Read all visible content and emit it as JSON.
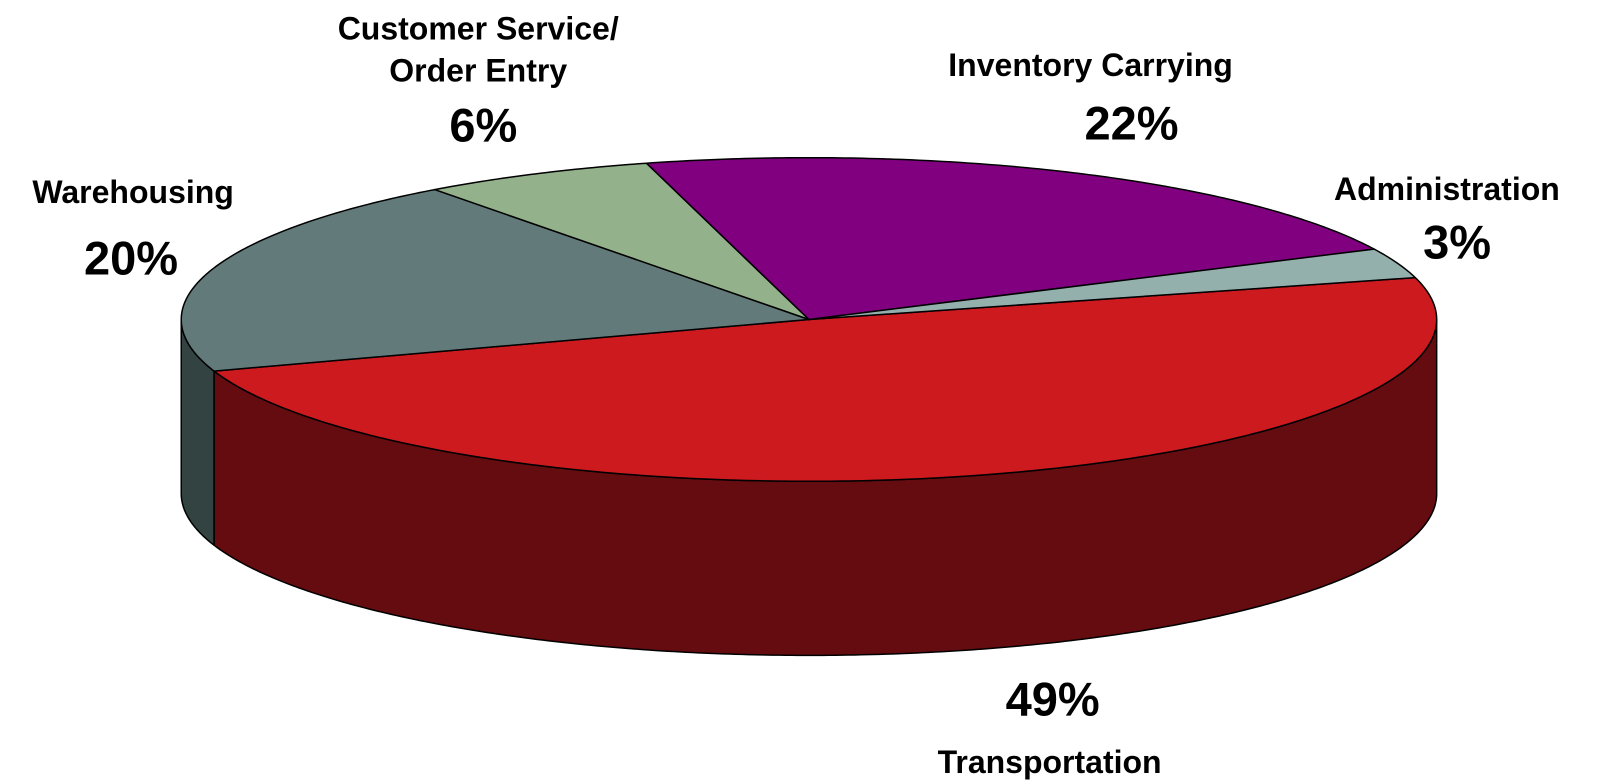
{
  "chart_data": {
    "type": "pie3d",
    "categories": [
      "Transportation",
      "Warehousing",
      "Customer Service/\nOrder Entry",
      "Inventory Carrying",
      "Administration"
    ],
    "values": [
      49,
      20,
      6,
      22,
      3
    ],
    "value_labels": [
      "49%",
      "20%",
      "6%",
      "22%",
      "3%"
    ],
    "colors": [
      "#cc1a1f",
      "#627b7a",
      "#93b28b",
      "#800080",
      "#93b0ad"
    ],
    "side_colors": [
      "#650c10",
      "#324342",
      "#4a5946",
      "#400040",
      "#4a5857"
    ]
  }
}
